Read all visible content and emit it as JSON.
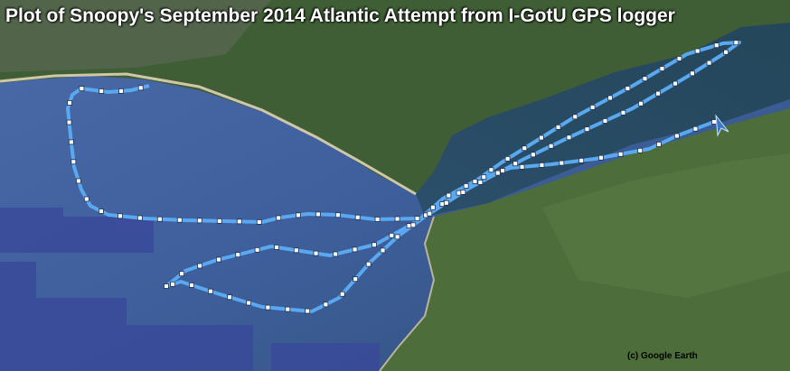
{
  "map": {
    "title": "Plot of Snoopy's September 2014 Atlantic Attempt from I-GotU GPS  logger",
    "credit": "(c) Google Earth",
    "imagery_source": "Google Earth satellite imagery",
    "track_color": "#5aa8f0",
    "track_point_color": "#ffffff",
    "arrow_marker_color": "#3a78c8",
    "water_color": "#3c5c96",
    "land_color": "#3f5e35"
  }
}
